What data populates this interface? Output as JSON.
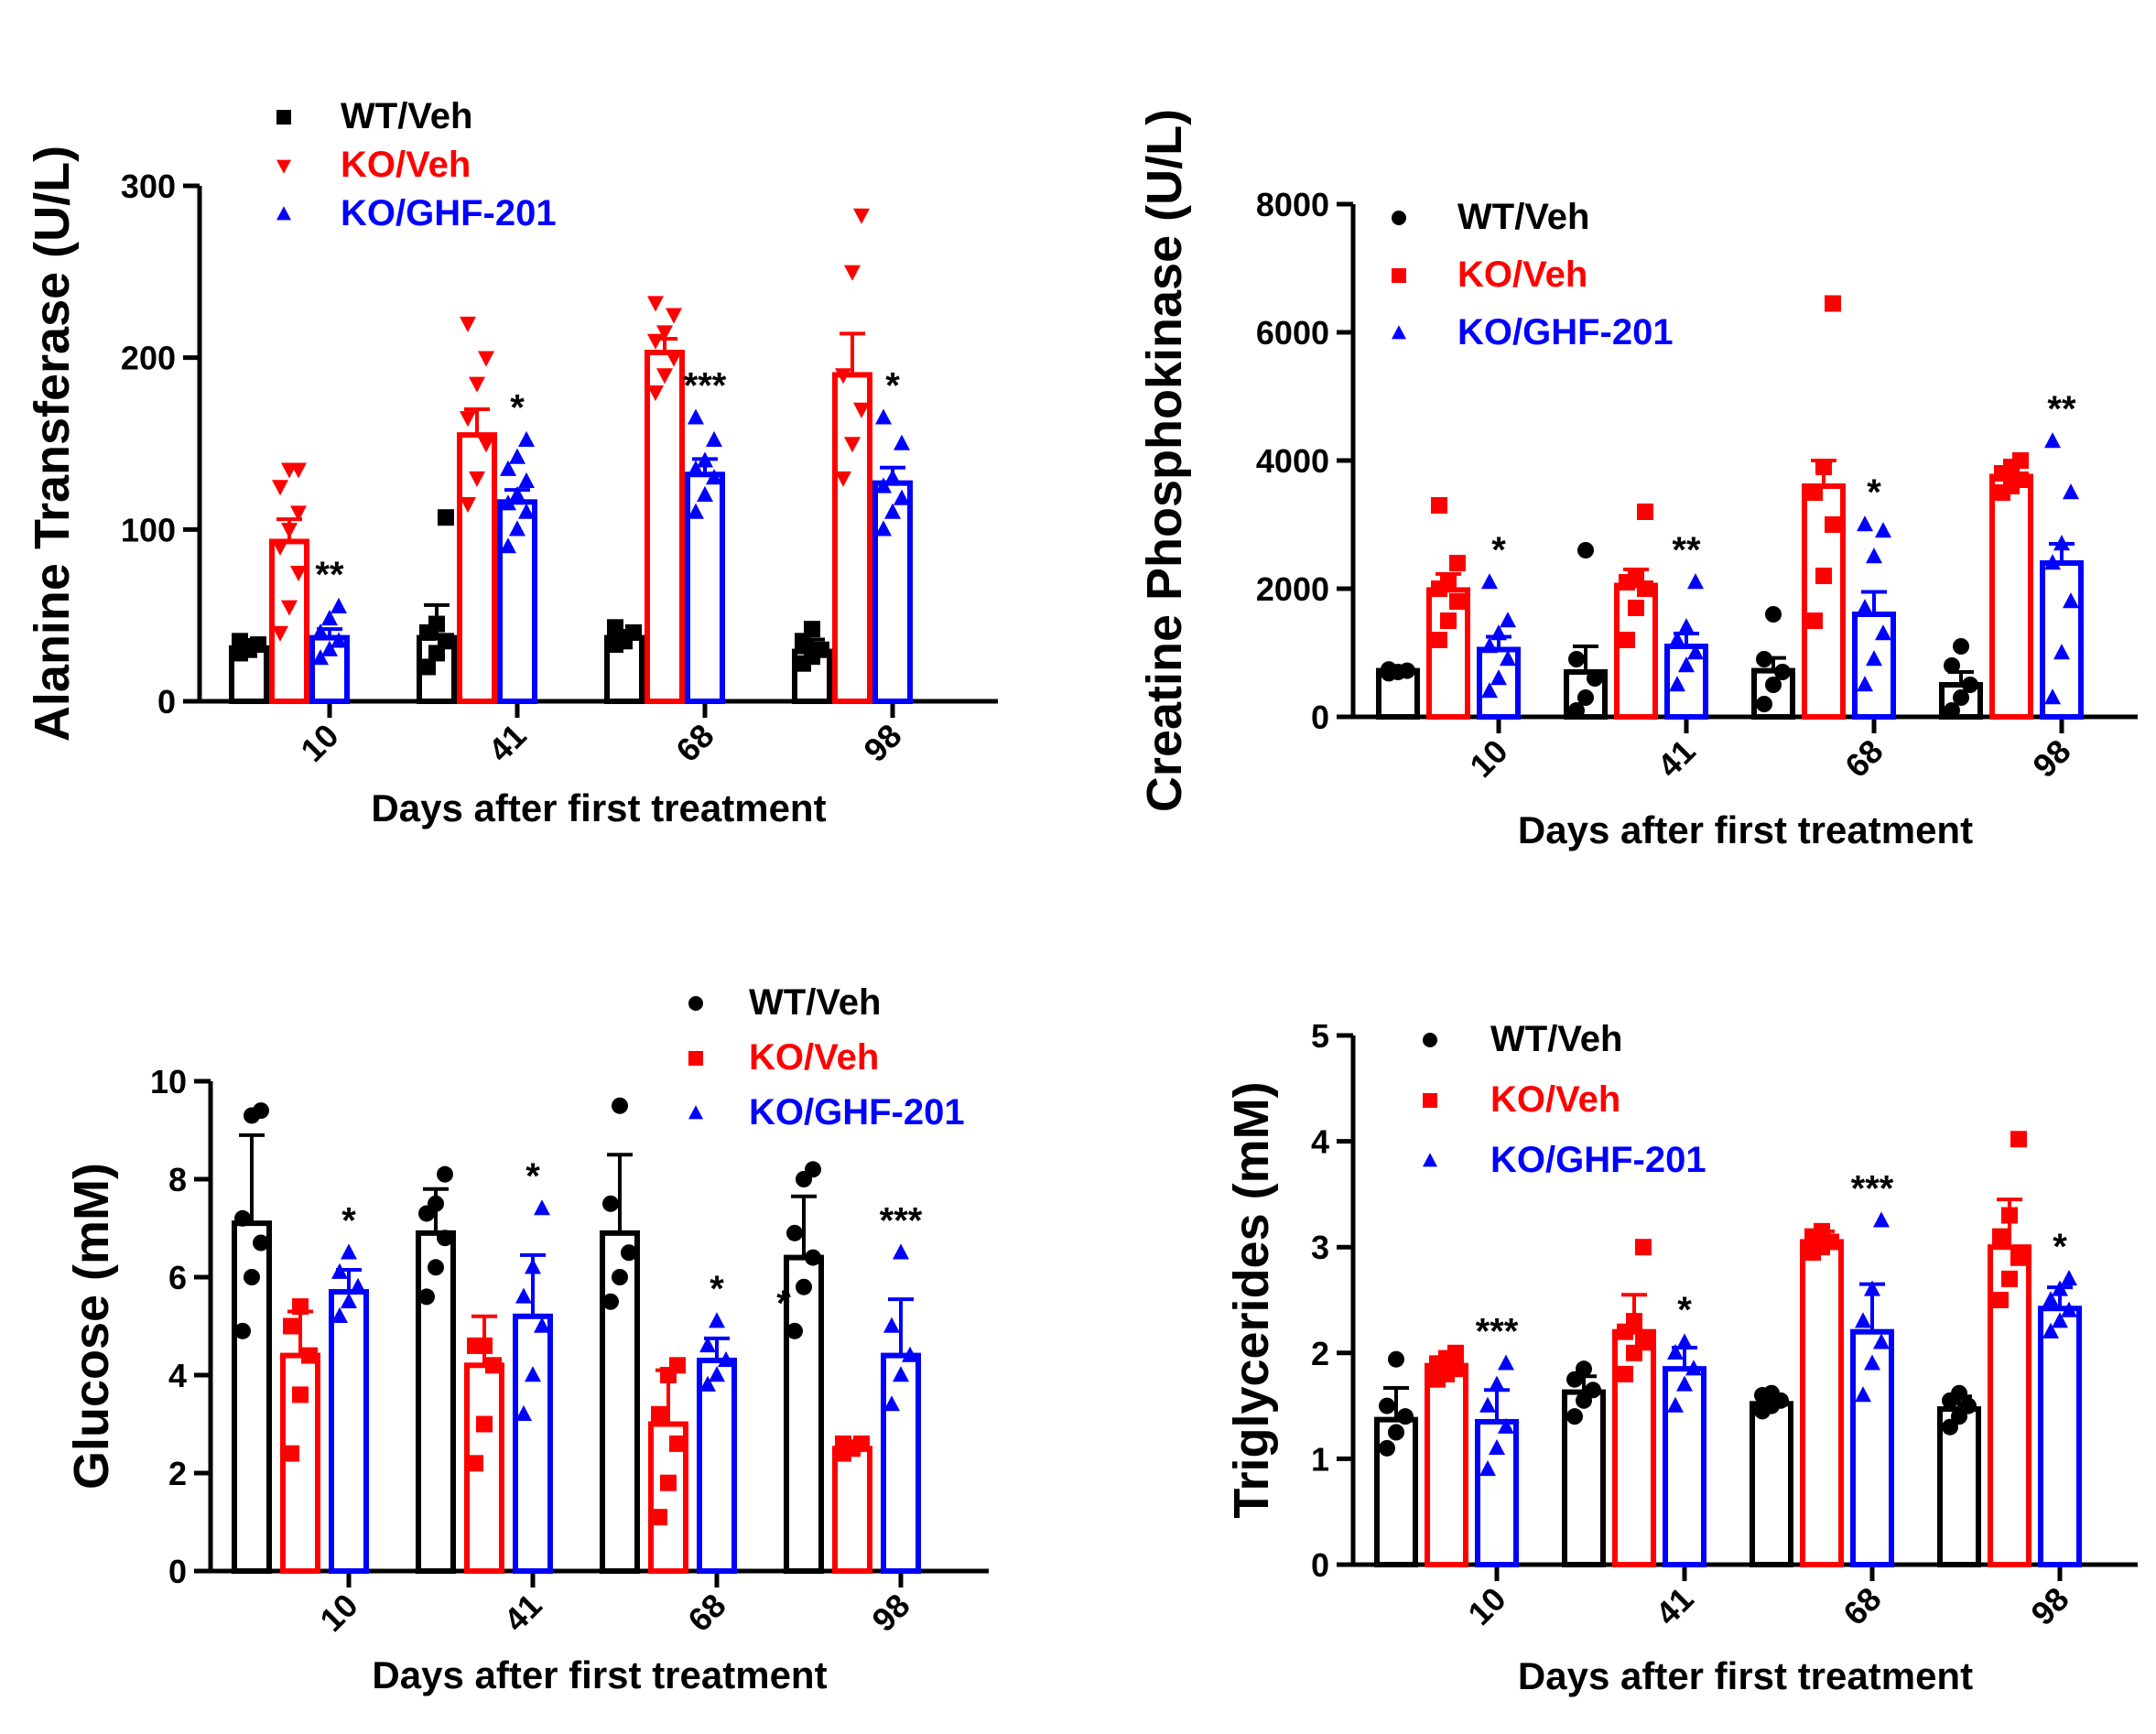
{
  "colors": {
    "WT/Veh": "#000000",
    "KO/Veh": "#ff0000",
    "KO/GHF-201": "#0000ff"
  },
  "legend_labels": [
    "WT/Veh",
    "KO/Veh",
    "KO/GHF-201"
  ],
  "chart_data": [
    {
      "id": "alt",
      "type": "bar",
      "ylabel": "Alanine Transferase (U/L)",
      "xlabel": "Days after first treatment",
      "categories": [
        "10",
        "41",
        "68",
        "98"
      ],
      "ylim": [
        0,
        300
      ],
      "yticks": [
        0,
        100,
        200,
        300
      ],
      "legend_position": "top-left",
      "markers": {
        "WT/Veh": "square",
        "KO/Veh": "triangle-down",
        "KO/GHF-201": "triangle-up"
      },
      "series": [
        {
          "name": "WT/Veh",
          "values": [
            31,
            37,
            37,
            29
          ],
          "err": [
            3,
            19,
            4,
            7
          ],
          "points": [
            [
              28,
              30,
              33,
              35,
              32
            ],
            [
              20,
              28,
              35,
              40,
              45,
              107
            ],
            [
              33,
              36,
              40,
              43,
              35
            ],
            [
              22,
              26,
              30,
              35,
              42
            ]
          ]
        },
        {
          "name": "KO/Veh",
          "values": [
            93,
            155,
            203,
            190
          ],
          "err": [
            13,
            15,
            8,
            24
          ],
          "points": [
            [
              40,
              55,
              75,
              90,
              100,
              110,
              125,
              135,
              135
            ],
            [
              115,
              130,
              150,
              165,
              185,
              200,
              220
            ],
            [
              180,
              190,
              200,
              210,
              215,
              225,
              232
            ],
            [
              130,
              150,
              170,
              190,
              250,
              283
            ]
          ]
        },
        {
          "name": "KO/GHF-201",
          "values": [
            37,
            116,
            132,
            127
          ],
          "err": [
            5,
            7,
            9,
            9
          ],
          "points": [
            [
              25,
              30,
              35,
              40,
              48,
              55
            ],
            [
              90,
              100,
              110,
              115,
              120,
              128,
              135,
              142,
              152
            ],
            [
              110,
              120,
              130,
              135,
              140,
              152,
              165
            ],
            [
              100,
              110,
              118,
              125,
              130,
              150,
              165
            ]
          ]
        }
      ],
      "significance": [
        "**",
        "*",
        "***",
        "*"
      ]
    },
    {
      "id": "cpk",
      "type": "bar",
      "ylabel": "Creatine Phosphokinase (U/L)",
      "xlabel": "Days after first treatment",
      "categories": [
        "10",
        "41",
        "68",
        "98"
      ],
      "ylim": [
        0,
        8000
      ],
      "yticks": [
        0,
        2000,
        4000,
        6000,
        8000
      ],
      "legend_position": "top-left",
      "markers": {
        "WT/Veh": "circle",
        "KO/Veh": "square",
        "KO/GHF-201": "triangle-up"
      },
      "series": [
        {
          "name": "WT/Veh",
          "values": [
            720,
            700,
            720,
            500
          ],
          "err": [
            40,
            400,
            200,
            200
          ],
          "points": [
            [
              680,
              700,
              720,
              740
            ],
            [
              100,
              300,
              600,
              900,
              2600
            ],
            [
              200,
              500,
              700,
              900,
              1600
            ],
            [
              100,
              300,
              500,
              800,
              1100
            ]
          ]
        },
        {
          "name": "KO/Veh",
          "values": [
            1980,
            2050,
            3600,
            3750
          ],
          "err": [
            250,
            250,
            400,
            150
          ],
          "points": [
            [
              1200,
              1500,
              1800,
              2000,
              2100,
              2400,
              3300
            ],
            [
              1200,
              1700,
              2000,
              2100,
              2200,
              3200
            ],
            [
              1500,
              2200,
              3000,
              3500,
              3900,
              6450
            ],
            [
              3500,
              3600,
              3700,
              3800,
              3900,
              4000
            ]
          ]
        },
        {
          "name": "KO/GHF-201",
          "values": [
            1050,
            1100,
            1600,
            2400
          ],
          "err": [
            200,
            200,
            350,
            300
          ],
          "points": [
            [
              400,
              600,
              900,
              1100,
              1300,
              1500,
              2100
            ],
            [
              500,
              800,
              1000,
              1200,
              1400,
              2100
            ],
            [
              500,
              900,
              1300,
              1700,
              2500,
              2900,
              3000
            ],
            [
              300,
              1000,
              1800,
              2400,
              2700,
              3500,
              4300
            ]
          ]
        }
      ],
      "significance": [
        "*",
        "**",
        "*",
        "**"
      ]
    },
    {
      "id": "glucose",
      "type": "bar",
      "ylabel": "Glucose (mM)",
      "xlabel": "Days after first treatment",
      "categories": [
        "10",
        "41",
        "68",
        "98"
      ],
      "ylim": [
        0,
        10
      ],
      "yticks": [
        0,
        2,
        4,
        6,
        8,
        10
      ],
      "legend_position": "top-right",
      "markers": {
        "WT/Veh": "circle",
        "KO/Veh": "square",
        "KO/GHF-201": "triangle-up"
      },
      "series": [
        {
          "name": "WT/Veh",
          "values": [
            7.1,
            6.9,
            6.9,
            6.4
          ],
          "err": [
            1.8,
            0.9,
            1.6,
            1.25
          ],
          "points": [
            [
              4.9,
              6.0,
              6.7,
              7.2,
              9.3,
              9.4
            ],
            [
              5.6,
              6.2,
              6.8,
              7.3,
              7.5,
              8.1
            ],
            [
              5.5,
              6.0,
              6.5,
              7.5,
              9.5
            ],
            [
              4.9,
              5.8,
              6.4,
              6.9,
              8.0,
              8.2
            ]
          ]
        },
        {
          "name": "KO/Veh",
          "values": [
            4.4,
            4.2,
            3.0,
            2.5
          ],
          "err": [
            0.9,
            1.0,
            1.1,
            0.15
          ],
          "points": [
            [
              2.4,
              3.6,
              4.4,
              5.0,
              5.4
            ],
            [
              2.2,
              3.0,
              4.2,
              4.6,
              4.6
            ],
            [
              1.1,
              1.8,
              2.6,
              3.2,
              4.0,
              4.2
            ],
            [
              2.4,
              2.5,
              2.6,
              2.6
            ]
          ]
        },
        {
          "name": "KO/GHF-201",
          "values": [
            5.7,
            5.2,
            4.3,
            4.4
          ],
          "err": [
            0.45,
            1.25,
            0.45,
            1.15
          ],
          "points": [
            [
              5.2,
              5.5,
              5.8,
              6.1,
              6.5
            ],
            [
              3.2,
              4.0,
              5.0,
              5.6,
              6.2,
              7.4
            ],
            [
              3.8,
              4.0,
              4.3,
              4.6,
              5.1
            ],
            [
              3.4,
              4.0,
              4.4,
              5.0,
              6.5
            ]
          ]
        }
      ],
      "significance": [
        "*",
        "*",
        "*",
        "***"
      ],
      "extra_marks": [
        {
          "text": "*",
          "category": "98",
          "value": 5.7
        }
      ]
    },
    {
      "id": "tg",
      "type": "bar",
      "ylabel": "Triglycerides (mM)",
      "xlabel": "Days after first treatment",
      "categories": [
        "10",
        "41",
        "68",
        "98"
      ],
      "ylim": [
        0,
        5
      ],
      "yticks": [
        0,
        1,
        2,
        3,
        4,
        5
      ],
      "legend_position": "top-left",
      "markers": {
        "WT/Veh": "circle",
        "KO/Veh": "square",
        "KO/GHF-201": "triangle-up"
      },
      "series": [
        {
          "name": "WT/Veh",
          "values": [
            1.37,
            1.63,
            1.52,
            1.47
          ],
          "err": [
            0.3,
            0.15,
            0.08,
            0.12
          ],
          "points": [
            [
              1.1,
              1.25,
              1.4,
              1.5,
              1.94
            ],
            [
              1.4,
              1.55,
              1.65,
              1.75,
              1.85
            ],
            [
              1.45,
              1.5,
              1.55,
              1.6,
              1.62
            ],
            [
              1.3,
              1.4,
              1.5,
              1.55,
              1.62
            ]
          ]
        },
        {
          "name": "KO/Veh",
          "values": [
            1.88,
            2.2,
            3.05,
            3.0
          ],
          "err": [
            0.08,
            0.35,
            0.1,
            0.45
          ],
          "points": [
            [
              1.75,
              1.8,
              1.85,
              1.9,
              1.95,
              2.0
            ],
            [
              1.8,
              2.0,
              2.1,
              2.2,
              2.3,
              3.0
            ],
            [
              2.95,
              3.0,
              3.05,
              3.1,
              3.15
            ],
            [
              2.5,
              2.7,
              2.9,
              3.1,
              3.3,
              4.02
            ]
          ]
        },
        {
          "name": "KO/GHF-201",
          "values": [
            1.35,
            1.85,
            2.2,
            2.42
          ],
          "err": [
            0.3,
            0.2,
            0.45,
            0.2
          ],
          "points": [
            [
              0.9,
              1.1,
              1.3,
              1.5,
              1.7,
              1.9
            ],
            [
              1.5,
              1.7,
              1.85,
              2.0,
              2.1
            ],
            [
              1.6,
              1.9,
              2.1,
              2.3,
              2.6,
              3.25
            ],
            [
              2.2,
              2.3,
              2.4,
              2.5,
              2.6,
              2.7
            ]
          ]
        }
      ],
      "significance": [
        "***",
        "*",
        "***",
        "*"
      ]
    }
  ]
}
